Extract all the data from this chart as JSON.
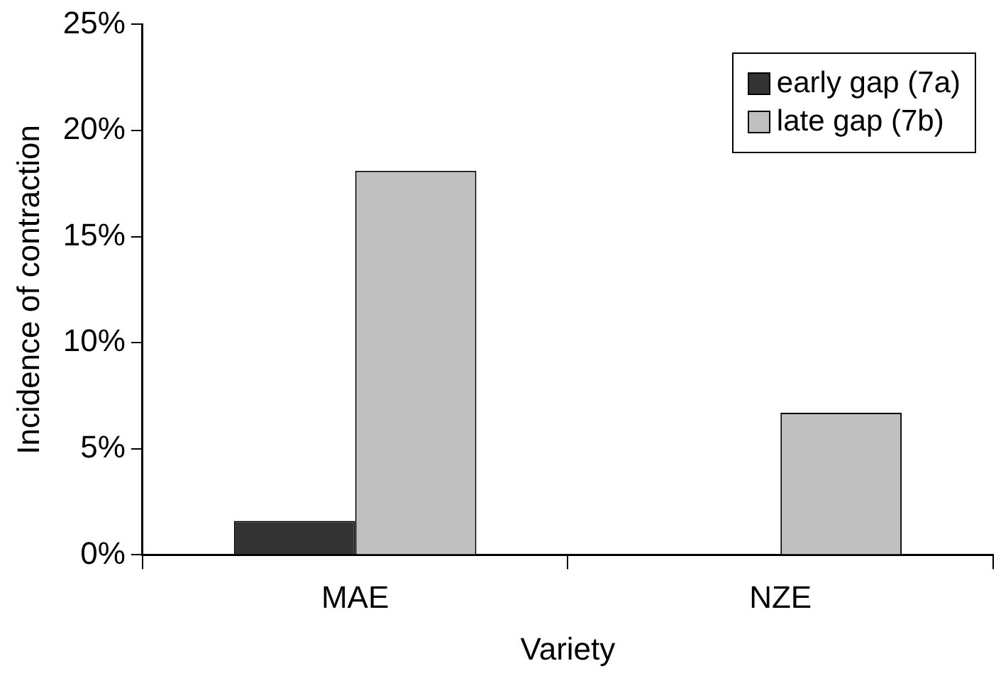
{
  "chart_data": {
    "type": "bar",
    "xlabel": "Variety",
    "ylabel": "Incidence of contraction",
    "categories": [
      "MAE",
      "NZE"
    ],
    "series": [
      {
        "name": "early gap (7a)",
        "color": "#333333",
        "values": [
          1.6,
          0
        ]
      },
      {
        "name": "late gap (7b)",
        "color": "#c0c0c0",
        "values": [
          18.1,
          6.7
        ]
      }
    ],
    "ylim": [
      0,
      25
    ],
    "yticks": [
      {
        "value": 0,
        "label": "0%"
      },
      {
        "value": 5,
        "label": "5%"
      },
      {
        "value": 10,
        "label": "10%"
      },
      {
        "value": 15,
        "label": "15%"
      },
      {
        "value": 20,
        "label": "20%"
      },
      {
        "value": 25,
        "label": "25%"
      }
    ],
    "grid": false,
    "legend": "top right"
  }
}
